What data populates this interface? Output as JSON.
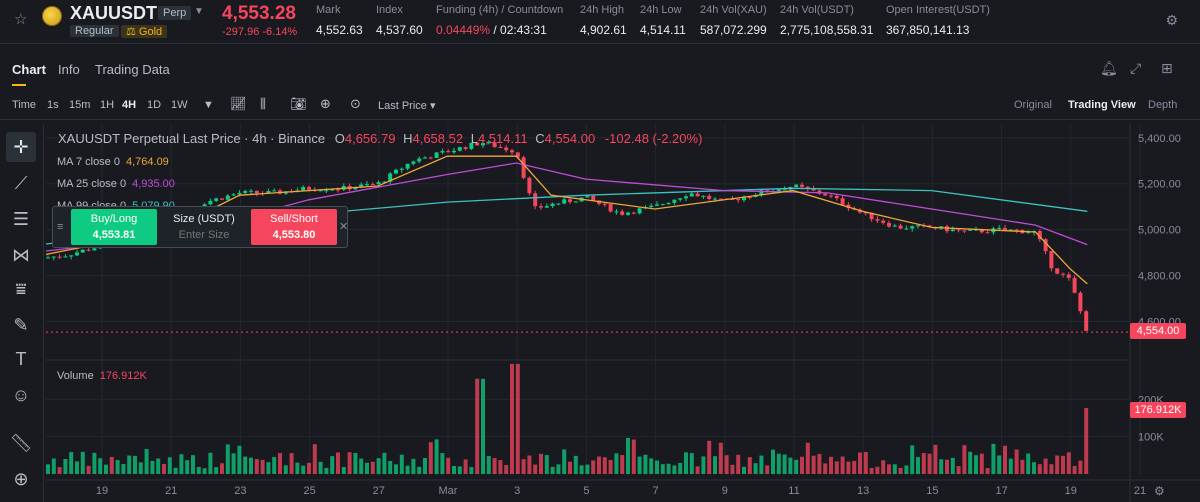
{
  "header": {
    "symbol": "XAUUSDT",
    "contract_badge": "Perp",
    "tag_regular": "Regular",
    "tag_gold": "Gold",
    "last_price": "4,553.28",
    "change": "-297.96 -6.14%",
    "stats": [
      {
        "label": "Mark",
        "value": "4,552.63"
      },
      {
        "label": "Index",
        "value": "4,537.60"
      },
      {
        "label": "Funding (4h) / Countdown",
        "value_red": "0.04449%",
        "value_rest": "/ 02:43:31"
      },
      {
        "label": "24h High",
        "value": "4,902.61"
      },
      {
        "label": "24h Low",
        "value": "4,514.11"
      },
      {
        "label": "24h Vol(XAU)",
        "value": "587,072.299"
      },
      {
        "label": "24h Vol(USDT)",
        "value": "2,775,108,558.31"
      },
      {
        "label": "Open Interest(USDT)",
        "value": "367,850,141.13"
      }
    ]
  },
  "tabs": [
    "Chart",
    "Info",
    "Trading Data"
  ],
  "toolbar": {
    "time_label": "Time",
    "intervals": [
      "1s",
      "15m",
      "1H",
      "4H",
      "1D",
      "1W"
    ],
    "active_interval": "4H",
    "price_type": "Last Price",
    "views": [
      "Original",
      "Trading View",
      "Depth"
    ],
    "active_view": "Trading View"
  },
  "legend": {
    "title": "XAUUSDT Perpetual Last Price · 4h · Binance",
    "o_label": "O",
    "o": "4,656.79",
    "h_label": "H",
    "h": "4,658.52",
    "l_label": "L",
    "l": "4,514.11",
    "c_label": "C",
    "c": "4,554.00",
    "delta": "-102.48 (-2.20%)",
    "ma7_label": "MA 7 close 0",
    "ma7_value": "4,764.09",
    "ma7_color": "#f0a73a",
    "ma25_label": "MA 25 close 0",
    "ma25_value": "4,935.00",
    "ma25_color": "#c04bd8",
    "ma99_label": "MA 99 close 0",
    "ma99_value": "5,079.90",
    "ma99_color": "#3dc1c2",
    "volume_label": "Volume",
    "volume_value": "176.912K"
  },
  "order_panel": {
    "buy_label": "Buy/Long",
    "buy_price": "4,553.81",
    "size_label": "Size (USDT)",
    "size_placeholder": "Enter Size",
    "sell_label": "Sell/Short",
    "sell_price": "4,553.80"
  },
  "price_axis": [
    "5,400.00",
    "5,200.00",
    "5,000.00",
    "4,800.00",
    "4,600.00"
  ],
  "current_price_tag": "4,554.00",
  "volume_axis": [
    "200K",
    "100K"
  ],
  "current_volume_tag": "176.912K",
  "date_axis": [
    "19",
    "21",
    "23",
    "25",
    "27",
    "Mar",
    "3",
    "5",
    "7",
    "9",
    "11",
    "13",
    "15",
    "17",
    "19",
    "21"
  ],
  "colors": {
    "up": "#0ecb81",
    "down": "#f6465d",
    "accent": "#f0b90b"
  },
  "chart_data": {
    "type": "candlestick",
    "title": "XAUUSDT Perpetual Last Price · 4h · Binance",
    "y_range": [
      4450,
      5460
    ],
    "volume_range": [
      0,
      300000
    ],
    "close_path": [
      {
        "x": "Feb 17",
        "y": 4870
      },
      {
        "x": "Feb 18",
        "y": 4890
      },
      {
        "x": "Feb 19",
        "y": 4930
      },
      {
        "x": "Feb 20",
        "y": 4960
      },
      {
        "x": "Feb 21",
        "y": 5020
      },
      {
        "x": "Feb 22",
        "y": 5120
      },
      {
        "x": "Feb 23",
        "y": 5160
      },
      {
        "x": "Feb 24",
        "y": 5160
      },
      {
        "x": "Feb 25",
        "y": 5180
      },
      {
        "x": "Feb 26",
        "y": 5180
      },
      {
        "x": "Feb 27",
        "y": 5200
      },
      {
        "x": "Feb 28",
        "y": 5300
      },
      {
        "x": "Mar 1",
        "y": 5340
      },
      {
        "x": "Mar 2",
        "y": 5380
      },
      {
        "x": "Mar 3",
        "y": 5340
      },
      {
        "x": "Mar 3.5",
        "y": 5090
      },
      {
        "x": "Mar 4",
        "y": 5110
      },
      {
        "x": "Mar 5",
        "y": 5140
      },
      {
        "x": "Mar 6",
        "y": 5070
      },
      {
        "x": "Mar 7",
        "y": 5100
      },
      {
        "x": "Mar 8",
        "y": 5160
      },
      {
        "x": "Mar 9",
        "y": 5120
      },
      {
        "x": "Mar 10",
        "y": 5160
      },
      {
        "x": "Mar 11",
        "y": 5190
      },
      {
        "x": "Mar 12",
        "y": 5150
      },
      {
        "x": "Mar 13",
        "y": 5070
      },
      {
        "x": "Mar 14",
        "y": 5010
      },
      {
        "x": "Mar 15",
        "y": 5010
      },
      {
        "x": "Mar 16",
        "y": 4990
      },
      {
        "x": "Mar 17",
        "y": 5000
      },
      {
        "x": "Mar 18",
        "y": 4990
      },
      {
        "x": "Mar 18.5",
        "y": 4830
      },
      {
        "x": "Mar 19",
        "y": 4780
      },
      {
        "x": "Mar 19.5",
        "y": 4554
      }
    ],
    "ma7": [
      {
        "x": "Feb 17",
        "y": 4880
      },
      {
        "x": "Feb 21",
        "y": 5000
      },
      {
        "x": "Feb 23",
        "y": 5150
      },
      {
        "x": "Feb 27",
        "y": 5190
      },
      {
        "x": "Mar 1",
        "y": 5320
      },
      {
        "x": "Mar 3",
        "y": 5320
      },
      {
        "x": "Mar 4",
        "y": 5150
      },
      {
        "x": "Mar 7",
        "y": 5090
      },
      {
        "x": "Mar 11",
        "y": 5170
      },
      {
        "x": "Mar 13",
        "y": 5080
      },
      {
        "x": "Mar 15",
        "y": 5010
      },
      {
        "x": "Mar 18",
        "y": 4990
      },
      {
        "x": "Mar 19",
        "y": 4830
      },
      {
        "x": "Mar 19.5",
        "y": 4764
      }
    ],
    "ma25": [
      {
        "x": "Feb 17",
        "y": 4900
      },
      {
        "x": "Feb 21",
        "y": 4970
      },
      {
        "x": "Feb 25",
        "y": 5130
      },
      {
        "x": "Mar 1",
        "y": 5240
      },
      {
        "x": "Mar 3",
        "y": 5290
      },
      {
        "x": "Mar 5",
        "y": 5220
      },
      {
        "x": "Mar 9",
        "y": 5170
      },
      {
        "x": "Mar 12",
        "y": 5160
      },
      {
        "x": "Mar 15",
        "y": 5090
      },
      {
        "x": "Mar 18",
        "y": 5020
      },
      {
        "x": "Mar 19.5",
        "y": 4935
      }
    ],
    "ma99": [
      {
        "x": "Feb 17",
        "y": 4930
      },
      {
        "x": "Feb 23",
        "y": 5040
      },
      {
        "x": "Mar 1",
        "y": 5120
      },
      {
        "x": "Mar 5",
        "y": 5150
      },
      {
        "x": "Mar 11",
        "y": 5180
      },
      {
        "x": "Mar 15",
        "y": 5170
      },
      {
        "x": "Mar 19.5",
        "y": 5080
      }
    ],
    "volume_peaks": [
      {
        "x": "Mar 2",
        "value": 255000
      },
      {
        "x": "Mar 3",
        "value": 295000
      },
      {
        "x": "Mar 19.5",
        "value": 176912
      }
    ]
  }
}
